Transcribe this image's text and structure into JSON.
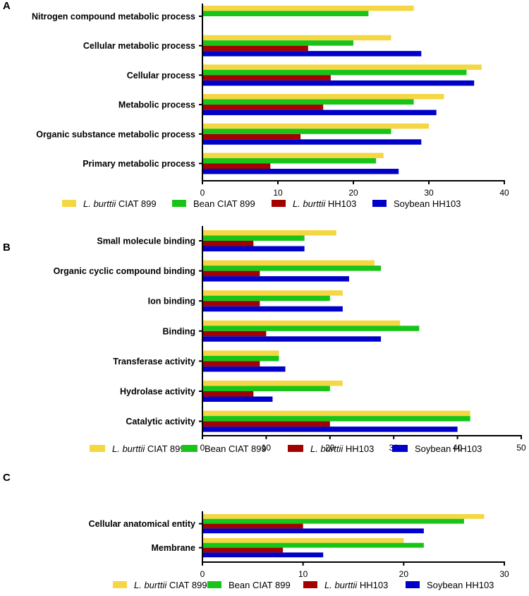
{
  "colors": {
    "L. burttii CIAT 899": "#f4d742",
    "Bean CIAT 899": "#19c419",
    "L. burttii HH103": "#a30000",
    "Soybean HH103": "#0000c8"
  },
  "chart_data": [
    {
      "type": "bar",
      "orientation": "horizontal",
      "panel": "A",
      "title": "",
      "xlabel": "",
      "ylabel": "",
      "xlim": [
        0,
        40
      ],
      "xticks": [
        "0",
        "10",
        "20",
        "30",
        "40"
      ],
      "categories": [
        "Nitrogen compound metabolic process",
        "Cellular metabolic process",
        "Cellular process",
        "Metabolic process",
        "Organic substance metabolic process",
        "Primary metabolic process"
      ],
      "series": [
        {
          "name": "L. burttii CIAT 899",
          "values": [
            28,
            25,
            37,
            32,
            30,
            24
          ]
        },
        {
          "name": "Bean CIAT 899",
          "values": [
            22,
            20,
            35,
            28,
            25,
            23
          ]
        },
        {
          "name": "L. burttii HH103",
          "values": [
            0,
            14,
            17,
            16,
            13,
            9
          ]
        },
        {
          "name": "Soybean HH103",
          "values": [
            0,
            29,
            36,
            31,
            29,
            26
          ]
        }
      ],
      "legend": [
        {
          "italic": "L. burttii",
          "rest": " CIAT 899"
        },
        {
          "italic": "",
          "rest": "Bean CIAT 899"
        },
        {
          "italic": "L. burttii",
          "rest": " HH103"
        },
        {
          "italic": "",
          "rest": "Soybean HH103"
        }
      ],
      "legend_position": "bottom"
    },
    {
      "type": "bar",
      "orientation": "horizontal",
      "panel": "B",
      "title": "",
      "xlabel": "",
      "ylabel": "",
      "xlim": [
        0,
        50
      ],
      "xticks": [
        "0",
        "10",
        "20",
        "30",
        "40",
        "50"
      ],
      "categories": [
        "Small molecule binding",
        "Organic cyclic compound binding",
        "Ion binding",
        "Binding",
        "Transferase activity",
        "Hydrolase activity",
        "Catalytic activity"
      ],
      "series": [
        {
          "name": "L. burttii CIAT 899",
          "values": [
            21,
            27,
            22,
            31,
            12,
            22,
            42
          ]
        },
        {
          "name": "Bean CIAT 899",
          "values": [
            16,
            28,
            20,
            34,
            12,
            20,
            42
          ]
        },
        {
          "name": "L. burttii HH103",
          "values": [
            8,
            9,
            9,
            10,
            9,
            8,
            20
          ]
        },
        {
          "name": "Soybean HH103",
          "values": [
            16,
            23,
            22,
            28,
            13,
            11,
            40
          ]
        }
      ],
      "legend": [
        {
          "italic": "L. burttii",
          "rest": " CIAT 899"
        },
        {
          "italic": "",
          "rest": "Bean CIAT 899"
        },
        {
          "italic": "L. burttii",
          "rest": " HH103"
        },
        {
          "italic": "",
          "rest": "Soybean HH103"
        }
      ],
      "legend_position": "bottom"
    },
    {
      "type": "bar",
      "orientation": "horizontal",
      "panel": "C",
      "title": "",
      "xlabel": "",
      "ylabel": "",
      "xlim": [
        0,
        30
      ],
      "xticks": [
        "0",
        "10",
        "20",
        "30"
      ],
      "categories": [
        "Cellular anatomical entity",
        "Membrane"
      ],
      "series": [
        {
          "name": "L. burttii CIAT 899",
          "values": [
            28,
            20
          ]
        },
        {
          "name": "Bean CIAT 899",
          "values": [
            26,
            22
          ]
        },
        {
          "name": "L. burttii HH103",
          "values": [
            10,
            8
          ]
        },
        {
          "name": "Soybean HH103",
          "values": [
            22,
            12
          ]
        }
      ],
      "legend": [
        {
          "italic": "L. burttii",
          "rest": " CIAT 899"
        },
        {
          "italic": "",
          "rest": "Bean CIAT 899"
        },
        {
          "italic": "L. burttii",
          "rest": " HH103"
        },
        {
          "italic": "",
          "rest": "Soybean HH103"
        }
      ],
      "legend_position": "bottom"
    }
  ]
}
